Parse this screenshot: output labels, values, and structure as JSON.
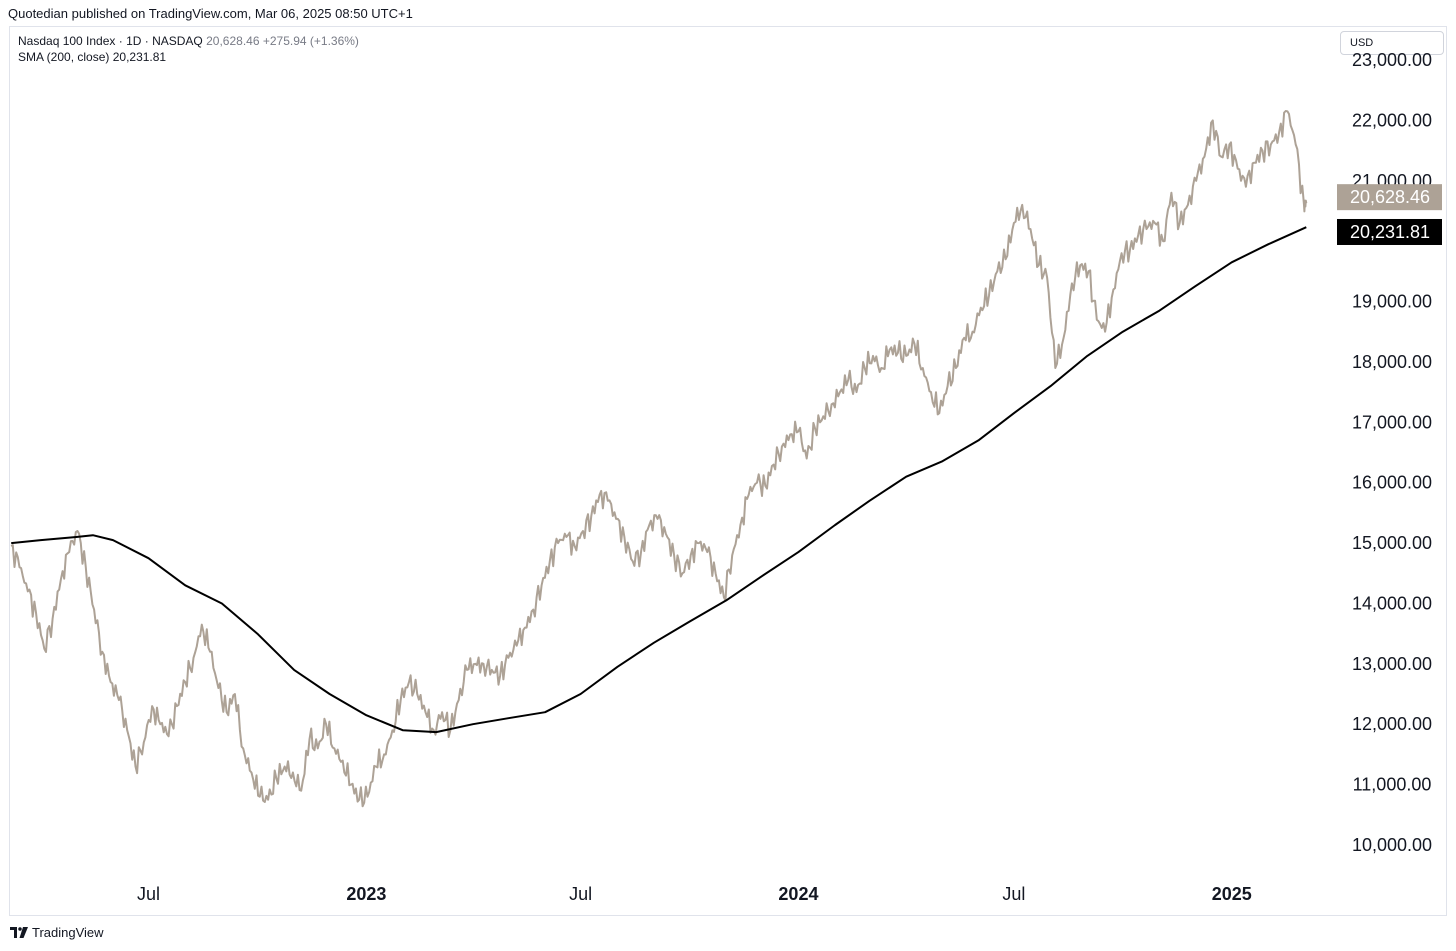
{
  "header": {
    "published_line": "Quotedian published on TradingView.com, Mar 06, 2025 08:50 UTC+1"
  },
  "legend": {
    "symbol": "Nasdaq 100 Index · 1D · NASDAQ",
    "price": "20,628.46",
    "change": "+275.94 (+1.36%)",
    "sma_label": "SMA (200, close)",
    "sma_value": "20,231.81"
  },
  "currency_button": {
    "label": "USD"
  },
  "footer": {
    "brand": "TradingView"
  },
  "colors": {
    "price_line": "#ada296",
    "sma_line": "#000000",
    "price_badge": "#ada296",
    "sma_badge": "#000000"
  },
  "chart_data": {
    "type": "line",
    "symbol": "Nasdaq 100 Index",
    "interval": "1D",
    "y_axis_side": "right",
    "ylim": [
      9900,
      23050
    ],
    "y_ticks": [
      "10,000.00",
      "11,000.00",
      "12,000.00",
      "13,000.00",
      "14,000.00",
      "15,000.00",
      "16,000.00",
      "17,000.00",
      "18,000.00",
      "19,000.00",
      "21,000.00",
      "22,000.00",
      "23,000.00"
    ],
    "y_tick_values": [
      10000,
      11000,
      12000,
      13000,
      14000,
      15000,
      16000,
      17000,
      18000,
      19000,
      21000,
      22000,
      23000
    ],
    "x_ticks": [
      {
        "label": "Jul",
        "date": "2022-07-01",
        "year": false
      },
      {
        "label": "2023",
        "date": "2023-01-01",
        "year": true
      },
      {
        "label": "Jul",
        "date": "2023-07-01",
        "year": false
      },
      {
        "label": "2024",
        "date": "2024-01-01",
        "year": true
      },
      {
        "label": "Jul",
        "date": "2024-07-01",
        "year": false
      },
      {
        "label": "2025",
        "date": "2025-01-01",
        "year": true
      }
    ],
    "xlim": [
      "2022-03-06",
      "2025-03-25"
    ],
    "last_price_label": "20,628.46",
    "last_sma_label": "20,231.81",
    "last_price": 20628.46,
    "last_sma": 20231.81,
    "series": [
      {
        "name": "Nasdaq 100 Index",
        "points": [
          [
            "2022-03-07",
            14950
          ],
          [
            "2022-03-14",
            14600
          ],
          [
            "2022-03-21",
            14200
          ],
          [
            "2022-03-28",
            13850
          ],
          [
            "2022-04-04",
            13250
          ],
          [
            "2022-04-11",
            13750
          ],
          [
            "2022-04-18",
            14400
          ],
          [
            "2022-04-25",
            14850
          ],
          [
            "2022-05-02",
            15200
          ],
          [
            "2022-05-09",
            14600
          ],
          [
            "2022-05-16",
            13900
          ],
          [
            "2022-05-23",
            13200
          ],
          [
            "2022-05-30",
            12700
          ],
          [
            "2022-06-06",
            12400
          ],
          [
            "2022-06-13",
            11900
          ],
          [
            "2022-06-20",
            11300
          ],
          [
            "2022-06-27",
            11700
          ],
          [
            "2022-07-04",
            12300
          ],
          [
            "2022-07-11",
            12000
          ],
          [
            "2022-07-18",
            11800
          ],
          [
            "2022-07-25",
            12300
          ],
          [
            "2022-08-01",
            12700
          ],
          [
            "2022-08-08",
            13100
          ],
          [
            "2022-08-15",
            13650
          ],
          [
            "2022-08-22",
            13200
          ],
          [
            "2022-08-29",
            12600
          ],
          [
            "2022-09-05",
            12200
          ],
          [
            "2022-09-12",
            12500
          ],
          [
            "2022-09-19",
            11600
          ],
          [
            "2022-09-26",
            11200
          ],
          [
            "2022-10-03",
            10800
          ],
          [
            "2022-10-10",
            10750
          ],
          [
            "2022-10-17",
            11100
          ],
          [
            "2022-10-24",
            11300
          ],
          [
            "2022-10-31",
            11200
          ],
          [
            "2022-11-07",
            10900
          ],
          [
            "2022-11-14",
            11750
          ],
          [
            "2022-11-21",
            11600
          ],
          [
            "2022-11-28",
            12000
          ],
          [
            "2022-12-05",
            11600
          ],
          [
            "2022-12-12",
            11400
          ],
          [
            "2022-12-19",
            11000
          ],
          [
            "2022-12-26",
            10750
          ],
          [
            "2023-01-02",
            10800
          ],
          [
            "2023-01-09",
            11300
          ],
          [
            "2023-01-16",
            11500
          ],
          [
            "2023-01-23",
            11900
          ],
          [
            "2023-01-30",
            12400
          ],
          [
            "2023-02-06",
            12700
          ],
          [
            "2023-02-13",
            12500
          ],
          [
            "2023-02-20",
            12200
          ],
          [
            "2023-02-27",
            11900
          ],
          [
            "2023-03-06",
            12200
          ],
          [
            "2023-03-13",
            11900
          ],
          [
            "2023-03-20",
            12400
          ],
          [
            "2023-03-27",
            12900
          ],
          [
            "2023-04-03",
            13000
          ],
          [
            "2023-04-10",
            13000
          ],
          [
            "2023-04-17",
            12900
          ],
          [
            "2023-04-24",
            12800
          ],
          [
            "2023-05-01",
            13100
          ],
          [
            "2023-05-08",
            13300
          ],
          [
            "2023-05-15",
            13600
          ],
          [
            "2023-05-22",
            13900
          ],
          [
            "2023-05-29",
            14300
          ],
          [
            "2023-06-05",
            14700
          ],
          [
            "2023-06-12",
            15000
          ],
          [
            "2023-06-19",
            15100
          ],
          [
            "2023-06-26",
            14950
          ],
          [
            "2023-07-03",
            15200
          ],
          [
            "2023-07-10",
            15450
          ],
          [
            "2023-07-17",
            15800
          ],
          [
            "2023-07-24",
            15700
          ],
          [
            "2023-07-31",
            15400
          ],
          [
            "2023-08-07",
            15100
          ],
          [
            "2023-08-14",
            14700
          ],
          [
            "2023-08-21",
            14850
          ],
          [
            "2023-08-28",
            15300
          ],
          [
            "2023-09-04",
            15400
          ],
          [
            "2023-09-11",
            15150
          ],
          [
            "2023-09-18",
            14800
          ],
          [
            "2023-09-25",
            14500
          ],
          [
            "2023-10-02",
            14800
          ],
          [
            "2023-10-09",
            15000
          ],
          [
            "2023-10-16",
            14850
          ],
          [
            "2023-10-23",
            14500
          ],
          [
            "2023-10-30",
            14100
          ],
          [
            "2023-11-06",
            14800
          ],
          [
            "2023-11-13",
            15300
          ],
          [
            "2023-11-20",
            15800
          ],
          [
            "2023-11-27",
            16000
          ],
          [
            "2023-12-04",
            15950
          ],
          [
            "2023-12-11",
            16300
          ],
          [
            "2023-12-18",
            16600
          ],
          [
            "2023-12-25",
            16800
          ],
          [
            "2024-01-01",
            16850
          ],
          [
            "2024-01-08",
            16400
          ],
          [
            "2024-01-15",
            16900
          ],
          [
            "2024-01-22",
            17100
          ],
          [
            "2024-01-29",
            17300
          ],
          [
            "2024-02-05",
            17500
          ],
          [
            "2024-02-12",
            17700
          ],
          [
            "2024-02-19",
            17500
          ],
          [
            "2024-02-26",
            17900
          ],
          [
            "2024-03-04",
            18100
          ],
          [
            "2024-03-11",
            17900
          ],
          [
            "2024-03-18",
            18200
          ],
          [
            "2024-03-25",
            18150
          ],
          [
            "2024-04-01",
            18100
          ],
          [
            "2024-04-08",
            18300
          ],
          [
            "2024-04-15",
            17900
          ],
          [
            "2024-04-22",
            17500
          ],
          [
            "2024-04-29",
            17150
          ],
          [
            "2024-05-06",
            17600
          ],
          [
            "2024-05-13",
            17900
          ],
          [
            "2024-05-20",
            18400
          ],
          [
            "2024-05-27",
            18500
          ],
          [
            "2024-06-03",
            18900
          ],
          [
            "2024-06-10",
            19100
          ],
          [
            "2024-06-17",
            19500
          ],
          [
            "2024-06-24",
            19700
          ],
          [
            "2024-07-01",
            20300
          ],
          [
            "2024-07-08",
            20600
          ],
          [
            "2024-07-15",
            20200
          ],
          [
            "2024-07-22",
            19600
          ],
          [
            "2024-07-29",
            19400
          ],
          [
            "2024-08-05",
            17900
          ],
          [
            "2024-08-12",
            18400
          ],
          [
            "2024-08-19",
            19300
          ],
          [
            "2024-08-26",
            19600
          ],
          [
            "2024-09-02",
            19500
          ],
          [
            "2024-09-09",
            18700
          ],
          [
            "2024-09-16",
            18500
          ],
          [
            "2024-09-23",
            19200
          ],
          [
            "2024-09-30",
            19800
          ],
          [
            "2024-10-07",
            19850
          ],
          [
            "2024-10-14",
            20100
          ],
          [
            "2024-10-21",
            20200
          ],
          [
            "2024-10-28",
            20300
          ],
          [
            "2024-11-04",
            20000
          ],
          [
            "2024-11-11",
            20800
          ],
          [
            "2024-11-18",
            20300
          ],
          [
            "2024-11-25",
            20600
          ],
          [
            "2024-12-02",
            21000
          ],
          [
            "2024-12-09",
            21400
          ],
          [
            "2024-12-16",
            22000
          ],
          [
            "2024-12-23",
            21400
          ],
          [
            "2024-12-30",
            21600
          ],
          [
            "2025-01-06",
            21200
          ],
          [
            "2025-01-13",
            20900
          ],
          [
            "2025-01-20",
            21300
          ],
          [
            "2025-01-27",
            21500
          ],
          [
            "2025-02-03",
            21600
          ],
          [
            "2025-02-10",
            21800
          ],
          [
            "2025-02-17",
            22150
          ],
          [
            "2025-02-24",
            21600
          ],
          [
            "2025-03-03",
            20600
          ],
          [
            "2025-03-05",
            20628.46
          ]
        ]
      },
      {
        "name": "SMA (200, close)",
        "points": [
          [
            "2022-03-07",
            15000
          ],
          [
            "2022-04-01",
            15050
          ],
          [
            "2022-05-01",
            15100
          ],
          [
            "2022-05-15",
            15130
          ],
          [
            "2022-06-01",
            15050
          ],
          [
            "2022-07-01",
            14750
          ],
          [
            "2022-08-01",
            14300
          ],
          [
            "2022-09-01",
            14000
          ],
          [
            "2022-10-01",
            13500
          ],
          [
            "2022-11-01",
            12900
          ],
          [
            "2022-12-01",
            12500
          ],
          [
            "2023-01-01",
            12150
          ],
          [
            "2023-02-01",
            11900
          ],
          [
            "2023-03-01",
            11870
          ],
          [
            "2023-04-01",
            12000
          ],
          [
            "2023-05-01",
            12100
          ],
          [
            "2023-06-01",
            12200
          ],
          [
            "2023-07-01",
            12500
          ],
          [
            "2023-08-01",
            12950
          ],
          [
            "2023-09-01",
            13350
          ],
          [
            "2023-10-01",
            13700
          ],
          [
            "2023-11-01",
            14050
          ],
          [
            "2023-12-01",
            14450
          ],
          [
            "2024-01-01",
            14850
          ],
          [
            "2024-02-01",
            15300
          ],
          [
            "2024-03-01",
            15700
          ],
          [
            "2024-04-01",
            16100
          ],
          [
            "2024-05-01",
            16350
          ],
          [
            "2024-06-01",
            16700
          ],
          [
            "2024-07-01",
            17150
          ],
          [
            "2024-08-01",
            17600
          ],
          [
            "2024-09-01",
            18100
          ],
          [
            "2024-10-01",
            18500
          ],
          [
            "2024-11-01",
            18850
          ],
          [
            "2024-12-01",
            19250
          ],
          [
            "2025-01-01",
            19650
          ],
          [
            "2025-02-01",
            19950
          ],
          [
            "2025-03-05",
            20231.81
          ]
        ]
      }
    ]
  }
}
